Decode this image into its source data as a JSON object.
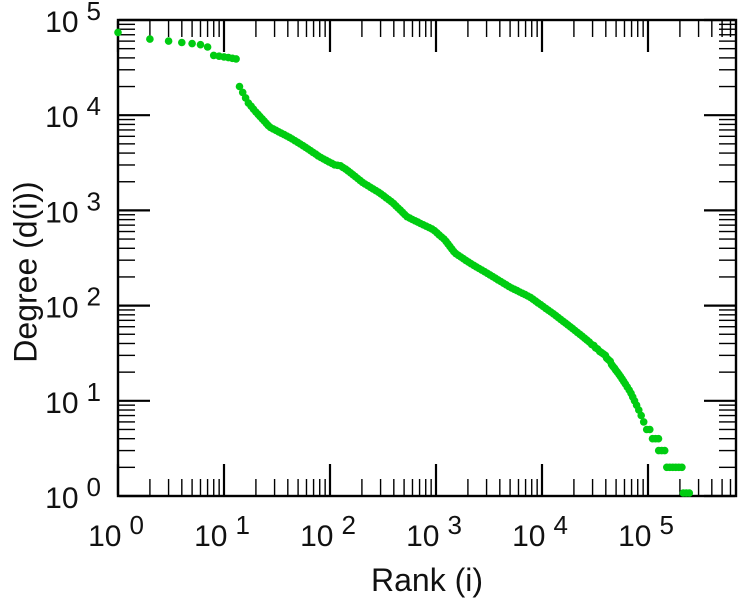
{
  "chart_data": {
    "type": "scatter",
    "title": "",
    "xlabel": "Rank (i)",
    "ylabel": "Degree (d(i))",
    "x_scale": "log",
    "y_scale": "log",
    "xlim": [
      1,
      680000
    ],
    "ylim": [
      1,
      100000
    ],
    "tick_base": "10",
    "x_tick_exponents": [
      0,
      1,
      2,
      3,
      4,
      5
    ],
    "y_tick_exponents": [
      0,
      1,
      2,
      3,
      4,
      5
    ],
    "grid": false,
    "legend": false,
    "marker_color": "#00CC11",
    "points": [
      [
        1,
        74000
      ],
      [
        2,
        63000
      ],
      [
        3,
        60000
      ],
      [
        4,
        58000
      ],
      [
        5,
        56500
      ],
      [
        6,
        55000
      ],
      [
        7,
        52000
      ],
      [
        8,
        42500
      ],
      [
        10,
        41000
      ],
      [
        13,
        39000
      ],
      [
        14,
        20000
      ],
      [
        17,
        13400
      ],
      [
        20,
        10800
      ],
      [
        27,
        7500
      ],
      [
        42,
        5800
      ],
      [
        58,
        4650
      ],
      [
        80,
        3650
      ],
      [
        111,
        3000
      ],
      [
        125,
        2950
      ],
      [
        145,
        2650
      ],
      [
        205,
        1950
      ],
      [
        296,
        1520
      ],
      [
        392,
        1200
      ],
      [
        534,
        855
      ],
      [
        712,
        730
      ],
      [
        940,
        630
      ],
      [
        1215,
        490
      ],
      [
        1510,
        356
      ],
      [
        2090,
        280
      ],
      [
        3230,
        210
      ],
      [
        5000,
        156
      ],
      [
        7700,
        123
      ],
      [
        13200,
        80
      ],
      [
        20400,
        55
      ],
      [
        28300,
        41
      ],
      [
        39300,
        30
      ],
      [
        54600,
        18.7
      ],
      [
        67900,
        13
      ],
      [
        83800,
        8
      ],
      [
        100000,
        5.1
      ],
      [
        116000,
        4.2
      ],
      [
        131000,
        3.2
      ],
      [
        150000,
        2.5
      ],
      [
        215000,
        1.5
      ],
      [
        260000,
        1.0
      ]
    ]
  }
}
